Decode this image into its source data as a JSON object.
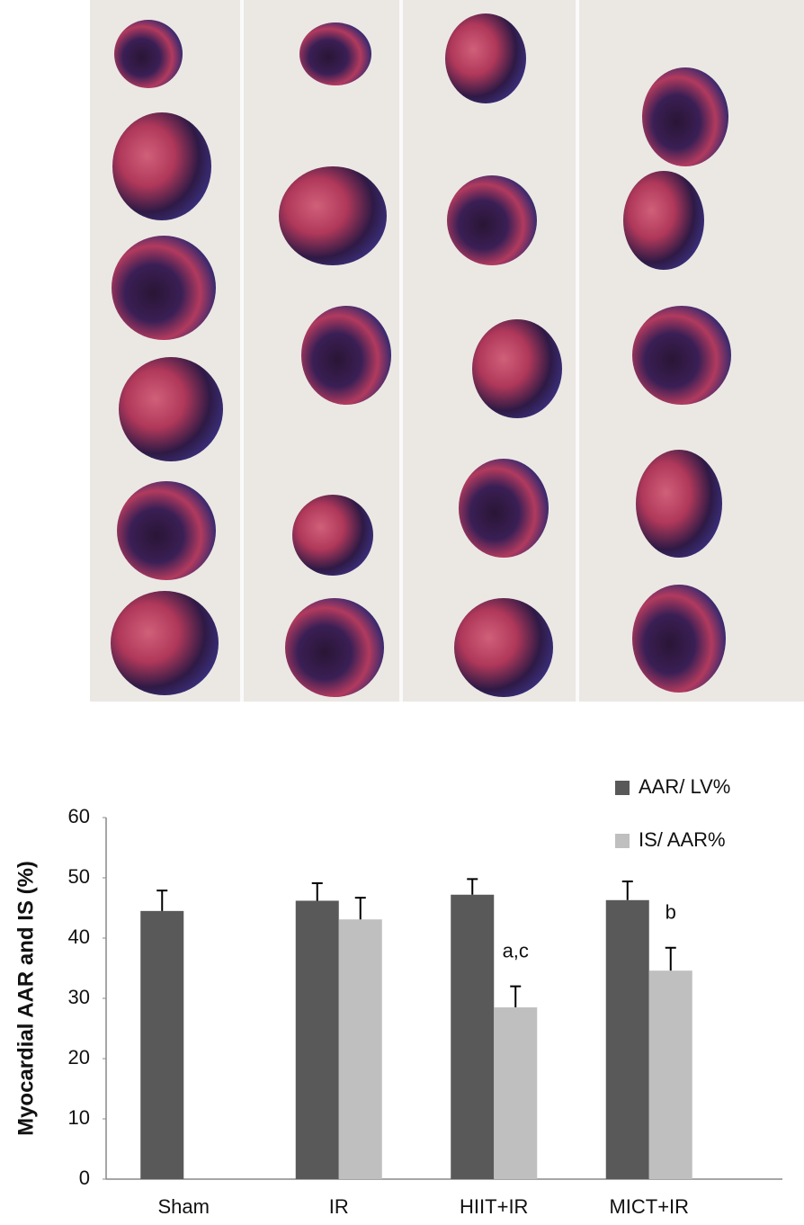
{
  "chart_data": {
    "type": "bar",
    "y_label": "Myocardial AAR and IS (%)",
    "categories": [
      "Sham",
      "IR",
      "HIIT+IR",
      "MICT+IR"
    ],
    "series": [
      {
        "name": "AAR/ LV%",
        "color": "#595959",
        "values": [
          44.5,
          46.2,
          47.2,
          46.3
        ],
        "errors": [
          3.4,
          2.9,
          2.6,
          3.1
        ],
        "annotations": [
          null,
          null,
          null,
          null
        ]
      },
      {
        "name": "IS/ AAR%",
        "color": "#bfbfbf",
        "values": [
          null,
          43.1,
          28.5,
          34.6
        ],
        "errors": [
          null,
          3.6,
          3.5,
          3.8
        ],
        "annotations": [
          null,
          null,
          "a,c",
          "b"
        ]
      }
    ],
    "ylim": [
      0,
      60
    ],
    "yticks": [
      0,
      10,
      20,
      30,
      40,
      50,
      60
    ],
    "grid": false,
    "legend": "top-right"
  }
}
